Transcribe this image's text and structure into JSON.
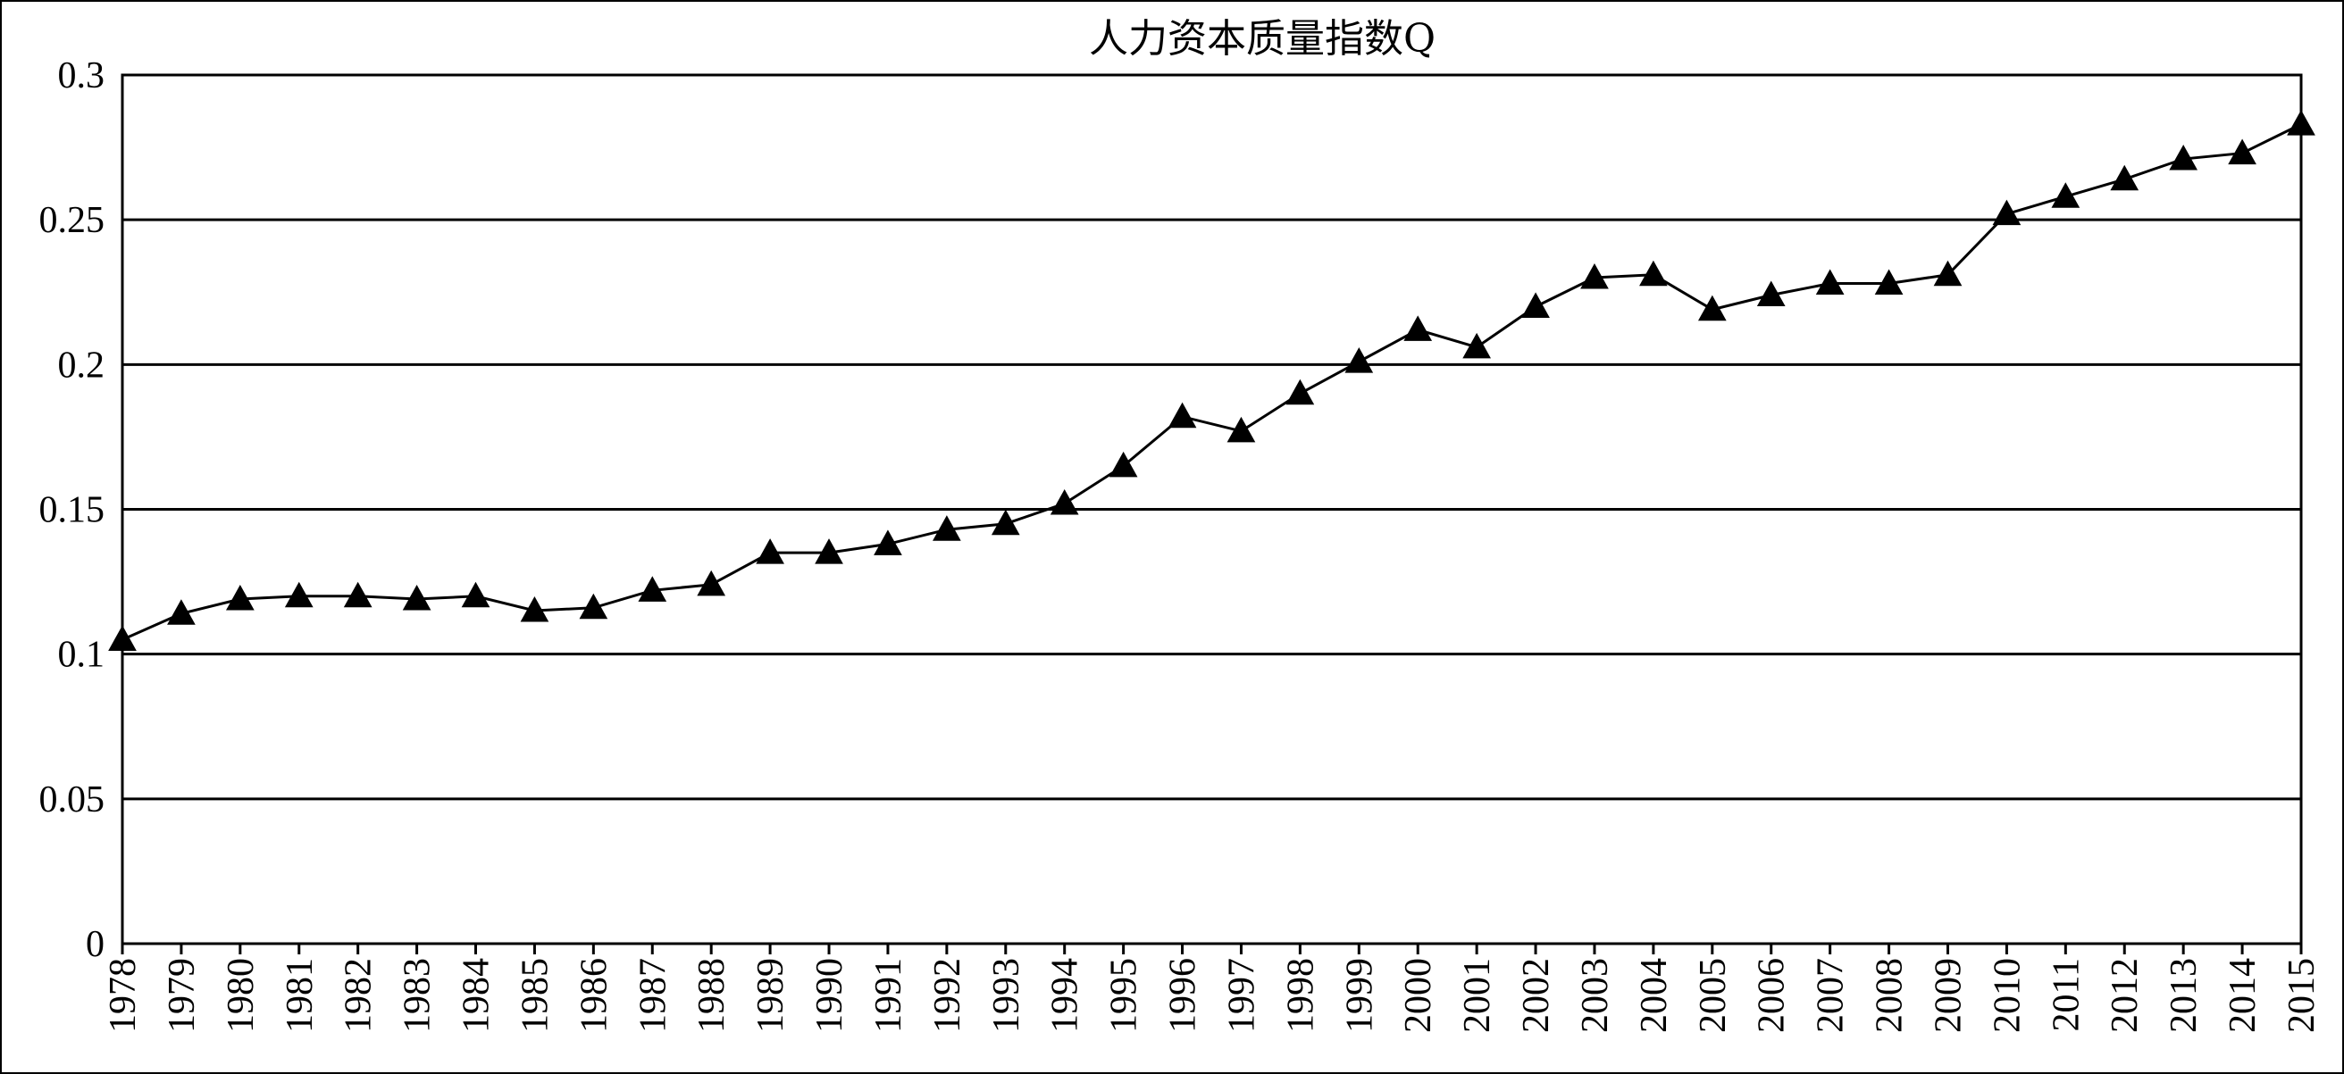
{
  "chart_data": {
    "type": "line",
    "title": "人力资本质量指数Q",
    "xlabel": "",
    "ylabel": "",
    "ylim": [
      0,
      0.3
    ],
    "yticks": [
      "0",
      "0.05",
      "0.1",
      "0.15",
      "0.2",
      "0.25",
      "0.3"
    ],
    "grid": true,
    "legend": "none",
    "marker": "triangle",
    "colors": {
      "line": "#000000",
      "marker": "#000000",
      "grid": "#000000"
    },
    "categories": [
      "1978",
      "1979",
      "1980",
      "1981",
      "1982",
      "1983",
      "1984",
      "1985",
      "1986",
      "1987",
      "1988",
      "1989",
      "1990",
      "1991",
      "1992",
      "1993",
      "1994",
      "1995",
      "1996",
      "1997",
      "1998",
      "1999",
      "2000",
      "2001",
      "2002",
      "2003",
      "2004",
      "2005",
      "2006",
      "2007",
      "2008",
      "2009",
      "2010",
      "2011",
      "2012",
      "2013",
      "2014",
      "2015"
    ],
    "series": [
      {
        "values": [
          0.105,
          0.114,
          0.119,
          0.12,
          0.12,
          0.119,
          0.12,
          0.115,
          0.116,
          0.122,
          0.124,
          0.135,
          0.135,
          0.138,
          0.143,
          0.145,
          0.152,
          0.165,
          0.182,
          0.177,
          0.19,
          0.201,
          0.212,
          0.206,
          0.22,
          0.23,
          0.231,
          0.219,
          0.224,
          0.228,
          0.228,
          0.231,
          0.252,
          0.258,
          0.264,
          0.271,
          0.273,
          0.283
        ]
      }
    ]
  }
}
